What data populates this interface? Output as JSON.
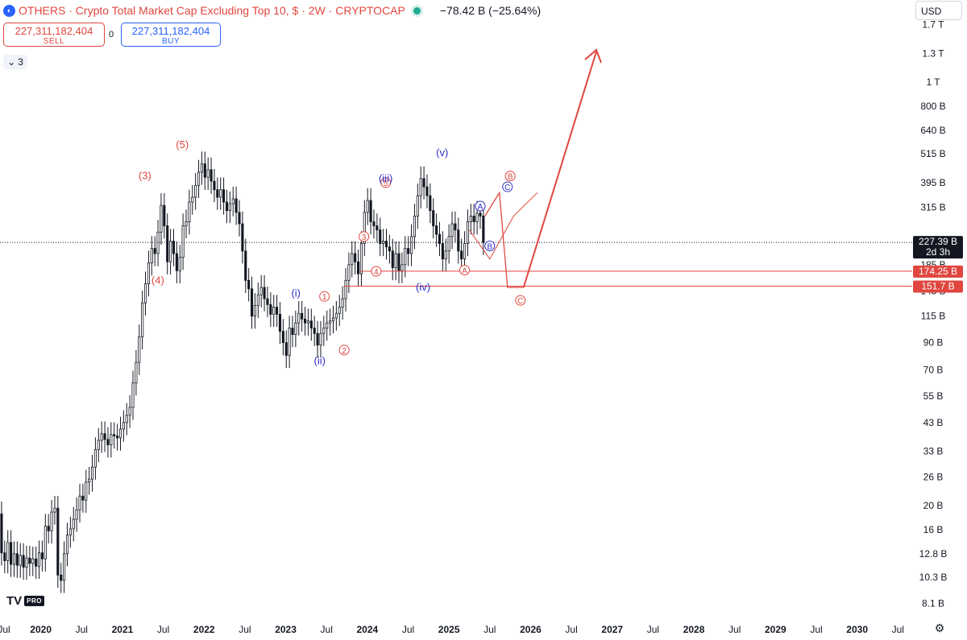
{
  "header": {
    "symbol_name": "OTHERS",
    "title": "Crypto Total Market Cap Excluding Top 10, $",
    "interval": "2W",
    "source": "CRYPTOCAP",
    "change": "−78.42 B (−25.64%)",
    "logo_icon": "crypto-logo-icon",
    "status_color": "#22ab94"
  },
  "trade": {
    "sell_price": "227,311,182,404",
    "sell_label": "SELL",
    "buy_price": "227,311,182,404",
    "buy_label": "BUY",
    "spread": "0"
  },
  "indicators_toggle": {
    "icon": "chevron-down-icon",
    "count": "3"
  },
  "currency": {
    "value": "USD",
    "icon": "chevron-down-icon"
  },
  "branding": {
    "logo": "TV",
    "badge": "PRO"
  },
  "settings_icon": "gear-icon",
  "colors": {
    "up": "#131722",
    "down": "#131722",
    "annotation_red": "#e0463f",
    "annotation_blue": "#2f2fc8",
    "grid": "#ffffff"
  },
  "chart_data": {
    "type": "candlestick",
    "title": "Crypto Total Market Cap Excluding Top 10, $",
    "y_scale": "log",
    "grid": false,
    "x": [
      "Jul",
      "2020",
      "Jul",
      "2021",
      "Jul",
      "2022",
      "Jul",
      "2023",
      "Jul",
      "2024",
      "Jul",
      "2025",
      "Jul",
      "2026",
      "Jul",
      "2027",
      "Jul",
      "2028",
      "Jul",
      "2029",
      "Jul",
      "2030",
      "Jul"
    ],
    "y_ticks": [
      "1.7 T",
      "1.3 T",
      "1 T",
      "800 B",
      "640 B",
      "515 B",
      "395 B",
      "315 B",
      "185 B",
      "145 B",
      "115 B",
      "90 B",
      "70 B",
      "55 B",
      "43 B",
      "33 B",
      "26 B",
      "20 B",
      "16 B",
      "12.8 B",
      "10.3 B",
      "8.1 B"
    ],
    "y_tick_values": [
      1700,
      1300,
      1000,
      800,
      640,
      515,
      395,
      315,
      185,
      145,
      115,
      90,
      70,
      55,
      43,
      33,
      26,
      20,
      16,
      12.8,
      10.3,
      8.1
    ],
    "ylim": [
      7,
      1900
    ],
    "price_labels": [
      {
        "text": "227.39 B",
        "sub": "2d 3h",
        "value": 227.39,
        "color": "#131722"
      },
      {
        "text": "174.25 B",
        "value": 174.25,
        "color": "#e0463f"
      },
      {
        "text": "151.7 B",
        "value": 151.7,
        "color": "#e0463f"
      }
    ],
    "series": [
      {
        "date_start": "2019-07",
        "period_weeks": 2,
        "points": [
          [
            18.5,
            12.9
          ],
          [
            12.9,
            12.0
          ],
          [
            12.0,
            14.2
          ],
          [
            14.2,
            11.6
          ],
          [
            11.6,
            12.8
          ],
          [
            12.8,
            11.5
          ],
          [
            11.5,
            12.6
          ],
          [
            12.6,
            11.3
          ],
          [
            11.3,
            12.3
          ],
          [
            12.3,
            11.7
          ],
          [
            11.7,
            12.2
          ],
          [
            12.2,
            11.4
          ],
          [
            11.4,
            12.9
          ],
          [
            12.9,
            12.2
          ],
          [
            12.2,
            16.5
          ],
          [
            16.5,
            15.8
          ],
          [
            15.8,
            18.8
          ],
          [
            18.8,
            19.5
          ],
          [
            19.5,
            10.5
          ],
          [
            10.5,
            10.0
          ],
          [
            10.0,
            12.8
          ],
          [
            12.8,
            15.2
          ],
          [
            15.2,
            16.1
          ],
          [
            16.1,
            17.6
          ],
          [
            17.6,
            19.2
          ],
          [
            19.2,
            21.8
          ],
          [
            21.8,
            21.0
          ],
          [
            21.0,
            24.8
          ],
          [
            24.8,
            25.5
          ],
          [
            25.5,
            28.5
          ],
          [
            28.5,
            33.5
          ],
          [
            33.5,
            36.5
          ],
          [
            36.5,
            38.8
          ],
          [
            38.8,
            36.8
          ],
          [
            36.8,
            35.0
          ],
          [
            35.0,
            38.5
          ],
          [
            38.5,
            38.0
          ],
          [
            38.0,
            37.3
          ],
          [
            37.3,
            40.5
          ],
          [
            40.5,
            43.0
          ],
          [
            43.0,
            46.0
          ],
          [
            46.0,
            49.5
          ],
          [
            49.5,
            62.0
          ],
          [
            62.0,
            75.0
          ],
          [
            75.0,
            95.0
          ],
          [
            95.0,
            130
          ],
          [
            130,
            155
          ],
          [
            155,
            188
          ],
          [
            188,
            215
          ],
          [
            215,
            205
          ],
          [
            205,
            250
          ],
          [
            250,
            320
          ],
          [
            320,
            265
          ],
          [
            265,
            190
          ],
          [
            190,
            230
          ],
          [
            230,
            205
          ],
          [
            205,
            175
          ],
          [
            175,
            198
          ],
          [
            198,
            265
          ],
          [
            265,
            275
          ],
          [
            275,
            330
          ],
          [
            330,
            345
          ],
          [
            345,
            385
          ],
          [
            385,
            435
          ],
          [
            435,
            470
          ],
          [
            470,
            415
          ],
          [
            415,
            445
          ],
          [
            445,
            400
          ],
          [
            400,
            370
          ],
          [
            370,
            345
          ],
          [
            345,
            370
          ],
          [
            370,
            330
          ],
          [
            330,
            305
          ],
          [
            305,
            325
          ],
          [
            325,
            340
          ],
          [
            340,
            300
          ],
          [
            300,
            270
          ],
          [
            270,
            210
          ],
          [
            210,
            160
          ],
          [
            160,
            148
          ],
          [
            148,
            115
          ],
          [
            115,
            127
          ],
          [
            127,
            140
          ],
          [
            140,
            150
          ],
          [
            150,
            135
          ],
          [
            135,
            128
          ],
          [
            128,
            117
          ],
          [
            117,
            125
          ],
          [
            125,
            117
          ],
          [
            117,
            100
          ],
          [
            100,
            90
          ],
          [
            90,
            80
          ],
          [
            80,
            103
          ],
          [
            103,
            97
          ],
          [
            97,
            108
          ],
          [
            108,
            118
          ],
          [
            118,
            112
          ],
          [
            112,
            108
          ],
          [
            108,
            110
          ],
          [
            110,
            103
          ],
          [
            103,
            98
          ],
          [
            98,
            88
          ],
          [
            88,
            98
          ],
          [
            98,
            103
          ],
          [
            103,
            108
          ],
          [
            108,
            110
          ],
          [
            110,
            113
          ],
          [
            113,
            118
          ],
          [
            118,
            125
          ],
          [
            125,
            135
          ],
          [
            135,
            160
          ],
          [
            160,
            185
          ],
          [
            185,
            205
          ],
          [
            205,
            190
          ],
          [
            190,
            170
          ],
          [
            170,
            225
          ],
          [
            225,
            300
          ],
          [
            300,
            335
          ],
          [
            335,
            275
          ],
          [
            275,
            265
          ],
          [
            265,
            255
          ],
          [
            255,
            225
          ],
          [
            225,
            230
          ],
          [
            230,
            218
          ],
          [
            218,
            210
          ],
          [
            210,
            180
          ],
          [
            180,
            205
          ],
          [
            205,
            175
          ],
          [
            175,
            185
          ],
          [
            185,
            215
          ],
          [
            215,
            205
          ],
          [
            205,
            240
          ],
          [
            240,
            290
          ],
          [
            290,
            350
          ],
          [
            350,
            410
          ],
          [
            410,
            380
          ],
          [
            380,
            350
          ],
          [
            350,
            305
          ],
          [
            305,
            265
          ],
          [
            265,
            245
          ],
          [
            245,
            225
          ],
          [
            225,
            195
          ],
          [
            195,
            210
          ],
          [
            210,
            240
          ],
          [
            240,
            270
          ],
          [
            270,
            255
          ],
          [
            255,
            210
          ],
          [
            210,
            195
          ],
          [
            195,
            225
          ],
          [
            225,
            275
          ],
          [
            275,
            290
          ],
          [
            290,
            275
          ],
          [
            275,
            298
          ],
          [
            298,
            290
          ],
          [
            290,
            227
          ]
        ]
      }
    ],
    "annotations": {
      "red_wave_labels": [
        "(3)",
        "(4)",
        "(5)",
        "1",
        "2",
        "3",
        "4",
        "5",
        "A",
        "B",
        "C"
      ],
      "blue_wave_labels": [
        "(i)",
        "(ii)",
        "(iii)",
        "(iv)",
        "(v)",
        "A",
        "B",
        "C"
      ]
    }
  }
}
